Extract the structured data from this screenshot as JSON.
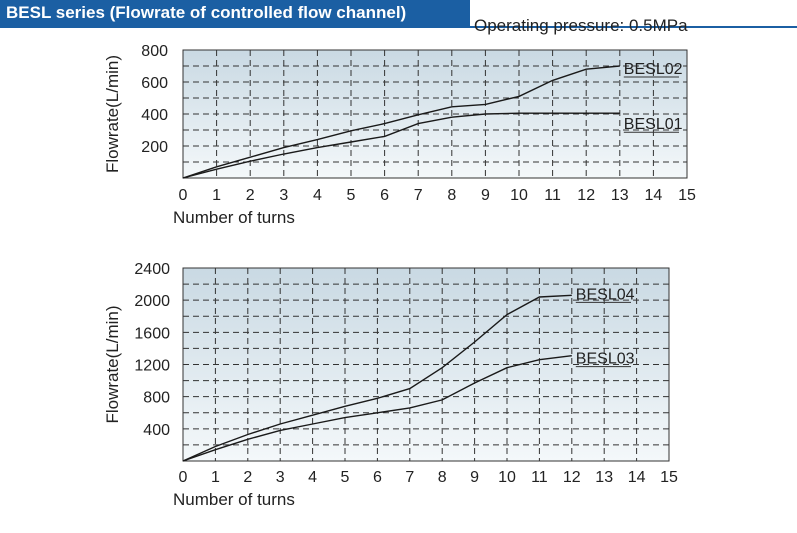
{
  "header": {
    "title": "BESL series (Flowrate of controlled flow channel)",
    "pressure_note": "Operating pressure: 0.5MPa",
    "accent_color": "#1b5fa3"
  },
  "chart_data": [
    {
      "type": "line",
      "xlabel": "Number of turns",
      "ylabel": "Flowrate(L/min)",
      "xlim": [
        0,
        15
      ],
      "ylim": [
        0,
        800
      ],
      "x_ticks": [
        "0",
        "1",
        "2",
        "3",
        "4",
        "5",
        "6",
        "7",
        "8",
        "9",
        "10",
        "11",
        "12",
        "13",
        "14",
        "15"
      ],
      "y_ticks": [
        "200",
        "400",
        "600",
        "800"
      ],
      "grid": true,
      "series": [
        {
          "name": "BESL02",
          "x": [
            0,
            1,
            2,
            3,
            4,
            5,
            6,
            7,
            8,
            9,
            10,
            11,
            12,
            13
          ],
          "values": [
            0,
            70,
            130,
            190,
            240,
            295,
            340,
            395,
            445,
            460,
            510,
            610,
            680,
            700
          ]
        },
        {
          "name": "BESL01",
          "x": [
            0,
            1,
            2,
            3,
            4,
            5,
            6,
            7,
            8,
            9,
            10,
            11,
            12,
            13
          ],
          "values": [
            0,
            55,
            105,
            150,
            190,
            225,
            260,
            340,
            380,
            400,
            405,
            405,
            405,
            405
          ]
        }
      ]
    },
    {
      "type": "line",
      "xlabel": "Number of turns",
      "ylabel": "Flowrate(L/min)",
      "xlim": [
        0,
        15
      ],
      "ylim": [
        0,
        2400
      ],
      "x_ticks": [
        "0",
        "1",
        "2",
        "3",
        "4",
        "5",
        "6",
        "7",
        "8",
        "9",
        "10",
        "11",
        "12",
        "13",
        "14",
        "15"
      ],
      "y_ticks": [
        "400",
        "800",
        "1200",
        "1600",
        "2000",
        "2400"
      ],
      "grid": true,
      "series": [
        {
          "name": "BESL04",
          "x": [
            0,
            1,
            2,
            3,
            4,
            5,
            6,
            7,
            8,
            9,
            10,
            11,
            12
          ],
          "values": [
            0,
            180,
            330,
            460,
            570,
            680,
            780,
            900,
            1160,
            1480,
            1820,
            2040,
            2060
          ]
        },
        {
          "name": "BESL03",
          "x": [
            0,
            1,
            2,
            3,
            4,
            5,
            6,
            7,
            8,
            9,
            10,
            11,
            12
          ],
          "values": [
            0,
            140,
            270,
            380,
            460,
            540,
            600,
            660,
            760,
            970,
            1160,
            1260,
            1310
          ]
        }
      ]
    }
  ]
}
